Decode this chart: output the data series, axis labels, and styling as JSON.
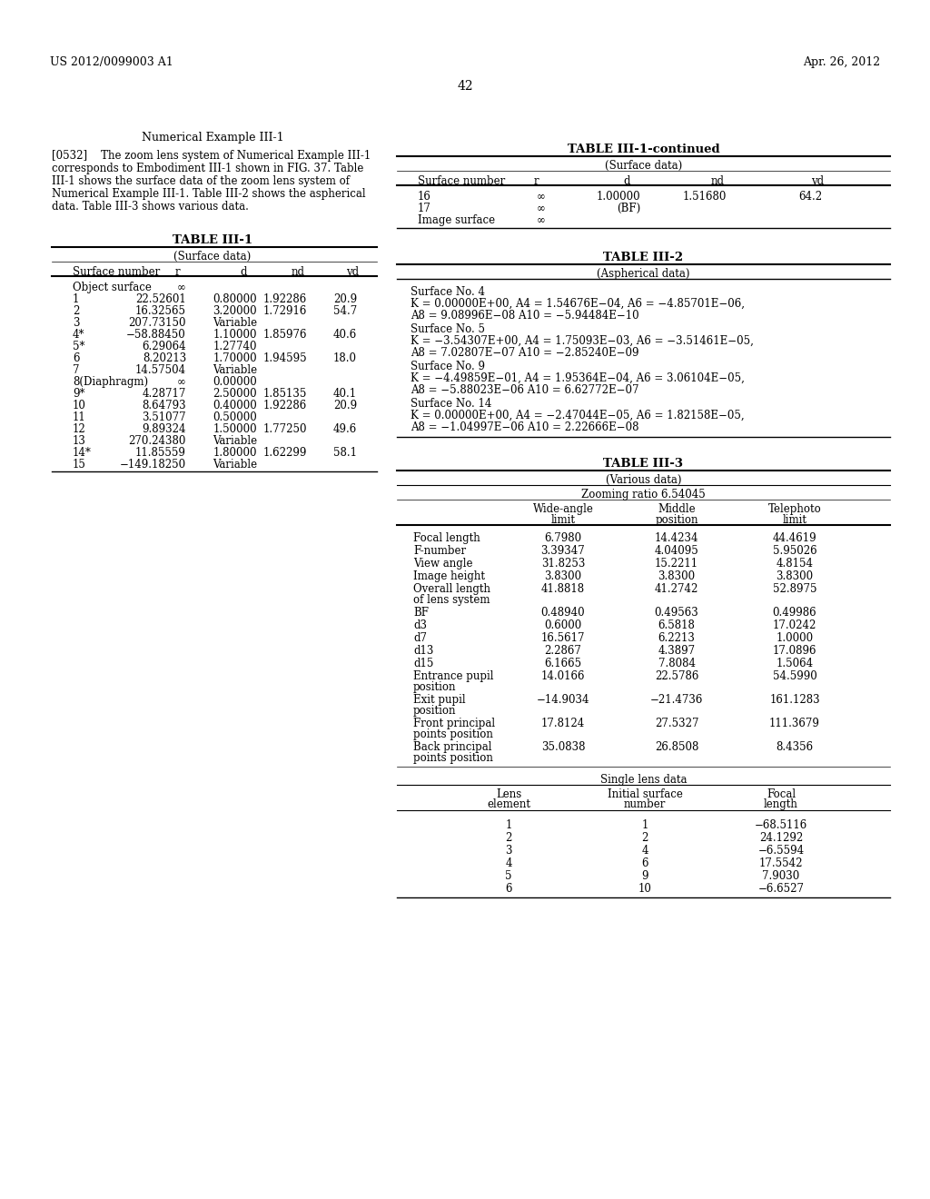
{
  "header_left": "US 2012/0099003 A1",
  "header_right": "Apr. 26, 2012",
  "page_number": "42",
  "section_title": "Numerical Example III-1",
  "paragraph": "[0532]    The zoom lens system of Numerical Example III-1\ncorresponds to Embodiment III-1 shown in FIG. 37. Table\nIII-1 shows the surface data of the zoom lens system of\nNumerical Example III-1. Table III-2 shows the aspherical\ndata. Table III-3 shows various data.",
  "table1_title": "TABLE III-1",
  "table1_subtitle": "(Surface data)",
  "table1_cols": [
    "Surface number",
    "r",
    "d",
    "nd",
    "vd"
  ],
  "table1_rows": [
    [
      "Object surface",
      "∞",
      "",
      "",
      ""
    ],
    [
      "1",
      "22.52601",
      "0.80000",
      "1.92286",
      "20.9"
    ],
    [
      "2",
      "16.32565",
      "3.20000",
      "1.72916",
      "54.7"
    ],
    [
      "3",
      "207.73150",
      "Variable",
      "",
      ""
    ],
    [
      "4*",
      "−58.88450",
      "1.10000",
      "1.85976",
      "40.6"
    ],
    [
      "5*",
      "6.29064",
      "1.27740",
      "",
      ""
    ],
    [
      "6",
      "8.20213",
      "1.70000",
      "1.94595",
      "18.0"
    ],
    [
      "7",
      "14.57504",
      "Variable",
      "",
      ""
    ],
    [
      "8(Diaphragm)",
      "∞",
      "0.00000",
      "",
      ""
    ],
    [
      "9*",
      "4.28717",
      "2.50000",
      "1.85135",
      "40.1"
    ],
    [
      "10",
      "8.64793",
      "0.40000",
      "1.92286",
      "20.9"
    ],
    [
      "11",
      "3.51077",
      "0.50000",
      "",
      ""
    ],
    [
      "12",
      "9.89324",
      "1.50000",
      "1.77250",
      "49.6"
    ],
    [
      "13",
      "270.24380",
      "Variable",
      "",
      ""
    ],
    [
      "14*",
      "11.85559",
      "1.80000",
      "1.62299",
      "58.1"
    ],
    [
      "15",
      "−149.18250",
      "Variable",
      "",
      ""
    ]
  ],
  "table1c_title": "TABLE III-1-continued",
  "table1c_subtitle": "(Surface data)",
  "table1c_cols": [
    "Surface number",
    "r",
    "d",
    "nd",
    "vd"
  ],
  "table1c_rows": [
    [
      "16",
      "∞",
      "1.00000",
      "1.51680",
      "64.2"
    ],
    [
      "17",
      "∞",
      "(BF)",
      "",
      ""
    ],
    [
      "Image surface",
      "∞",
      "",
      "",
      ""
    ]
  ],
  "table2_title": "TABLE III-2",
  "table2_subtitle": "(Aspherical data)",
  "table2_rows": [
    [
      "Surface No. 4",
      "K = 0.00000E+00, A4 = 1.54676E−04, A6 = −4.85701E−06,\nA8 = 9.08996E−08 A10 = −5.94484E−10"
    ],
    [
      "Surface No. 5",
      "K = −3.54307E+00, A4 = 1.75093E−03, A6 = −3.51461E−05,\nA8 = 7.02807E−07 A10 = −2.85240E−09"
    ],
    [
      "Surface No. 9",
      "K = −4.49859E−01, A4 = 1.95364E−04, A6 = 3.06104E−05,\nA8 = −5.88023E−06 A10 = 6.62772E−07"
    ],
    [
      "Surface No. 14",
      "K = 0.00000E+00, A4 = −2.47044E−05, A6 = 1.82158E−05,\nA8 = −1.04997E−06 A10 = 2.22666E−08"
    ]
  ],
  "table3_title": "TABLE III-3",
  "table3_subtitle": "(Various data)",
  "table3_zoom": "Zooming ratio 6.54045",
  "table3_cols": [
    "",
    "Wide-angle\nlimit",
    "Middle\nposition",
    "Telephoto\nlimit"
  ],
  "table3_rows": [
    [
      "Focal length",
      "6.7980",
      "14.4234",
      "44.4619"
    ],
    [
      "F-number",
      "3.39347",
      "4.04095",
      "5.95026"
    ],
    [
      "View angle",
      "31.8253",
      "15.2211",
      "4.8154"
    ],
    [
      "Image height",
      "3.8300",
      "3.8300",
      "3.8300"
    ],
    [
      "Overall length\nof lens system",
      "41.8818",
      "41.2742",
      "52.8975"
    ],
    [
      "BF",
      "0.48940",
      "0.49563",
      "0.49986"
    ],
    [
      "d3",
      "0.6000",
      "6.5818",
      "17.0242"
    ],
    [
      "d7",
      "16.5617",
      "6.2213",
      "1.0000"
    ],
    [
      "d13",
      "2.2867",
      "4.3897",
      "17.0896"
    ],
    [
      "d15",
      "6.1665",
      "7.8084",
      "1.5064"
    ],
    [
      "Entrance pupil\nposition",
      "14.0166",
      "22.5786",
      "54.5990"
    ],
    [
      "Exit pupil\nposition",
      "−14.9034",
      "−21.4736",
      "161.1283"
    ],
    [
      "Front principal\npoints position",
      "17.8124",
      "27.5327",
      "111.3679"
    ],
    [
      "Back principal\npoints position",
      "35.0838",
      "26.8508",
      "8.4356"
    ]
  ],
  "table3_single_title": "Single lens data",
  "table3_single_cols": [
    "Lens\nelement",
    "Initial surface\nnumber",
    "Focal\nlength"
  ],
  "table3_single_rows": [
    [
      "1",
      "1",
      "−68.5116"
    ],
    [
      "2",
      "2",
      "24.1292"
    ],
    [
      "3",
      "4",
      "−6.5594"
    ],
    [
      "4",
      "6",
      "17.5542"
    ],
    [
      "5",
      "9",
      "7.9030"
    ],
    [
      "6",
      "10",
      "−6.6527"
    ]
  ]
}
